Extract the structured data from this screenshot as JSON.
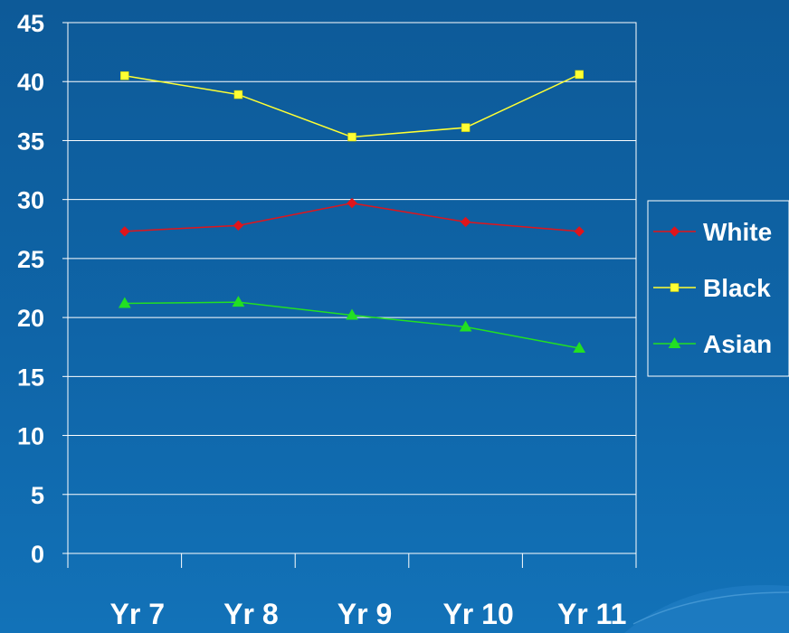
{
  "chart_data": {
    "type": "line",
    "categories": [
      "Yr 7",
      "Yr 8",
      "Yr 9",
      "Yr 10",
      "Yr 11"
    ],
    "series": [
      {
        "name": "White",
        "values": [
          27.3,
          27.8,
          29.7,
          28.1,
          27.3
        ],
        "color": "#e0151b",
        "marker": "diamond"
      },
      {
        "name": "Black",
        "values": [
          40.5,
          38.9,
          35.3,
          36.1,
          40.6
        ],
        "color": "#ffff33",
        "marker": "square"
      },
      {
        "name": "Asian",
        "values": [
          21.2,
          21.3,
          20.2,
          19.2,
          17.4
        ],
        "color": "#22e022",
        "marker": "triangle"
      }
    ],
    "ylim": [
      0,
      45
    ],
    "yticks": [
      "0",
      "5",
      "10",
      "15",
      "20",
      "25",
      "30",
      "35",
      "40",
      "45"
    ],
    "grid": true,
    "legend_position": "right"
  }
}
